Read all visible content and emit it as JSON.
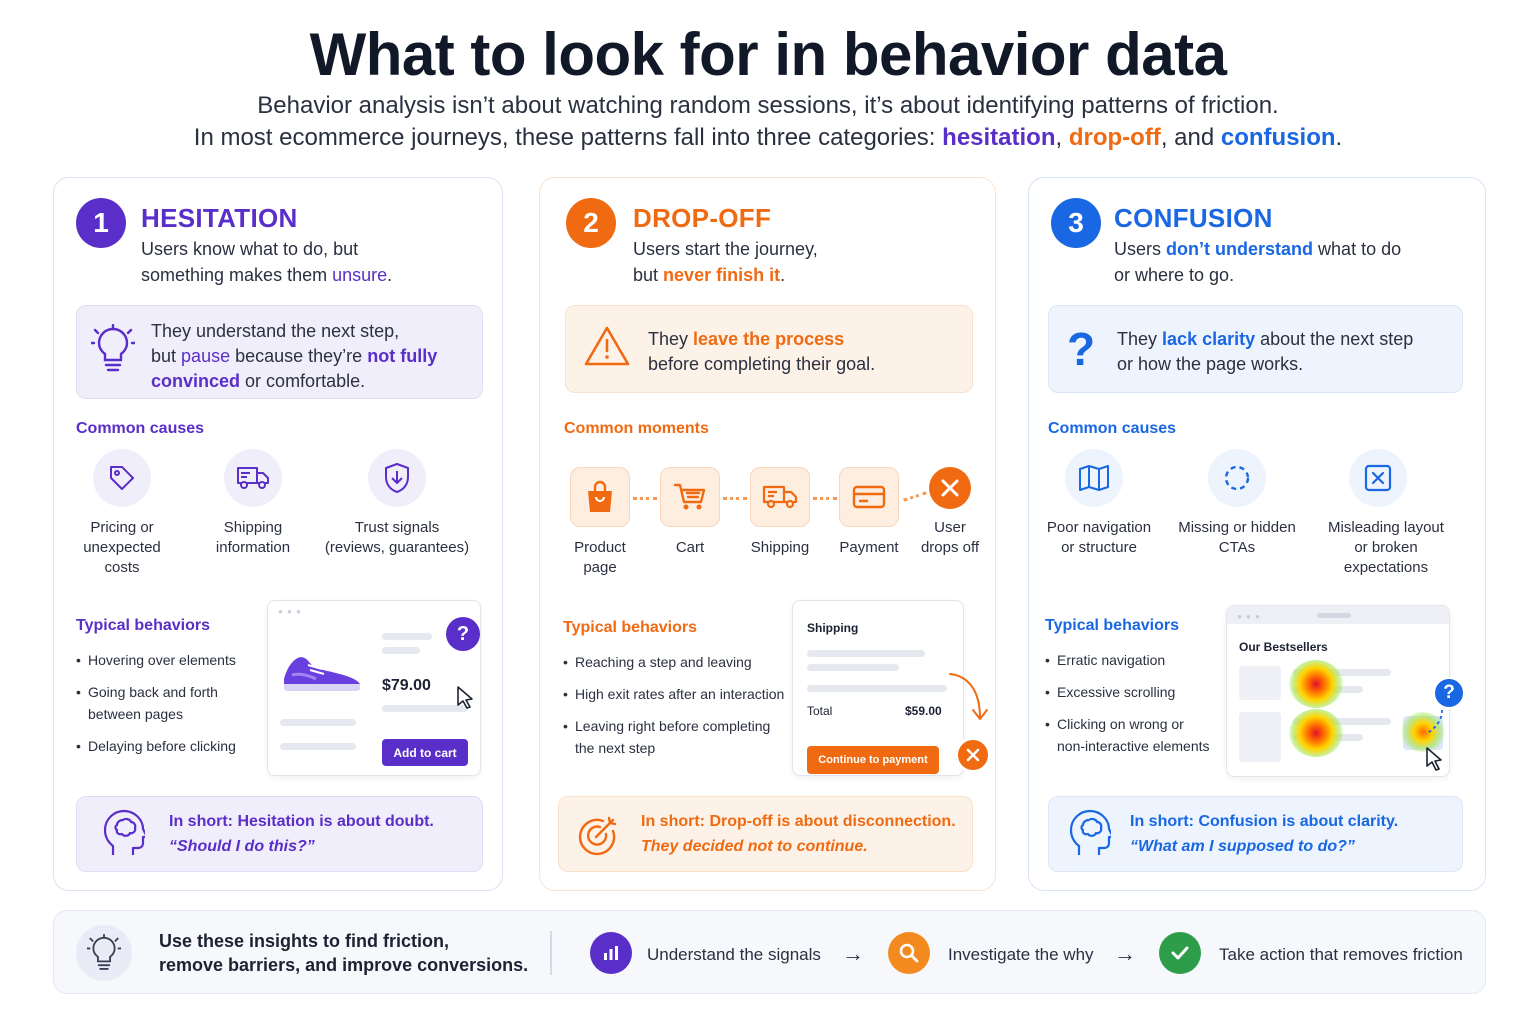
{
  "header": {
    "title": "What to look for in behavior data",
    "line1": "Behavior analysis isn’t about watching random sessions, it’s about identifying patterns of friction.",
    "line2_pre": "In most ecommerce journeys, these patterns fall into three categories:",
    "kw_hesitation": "hesitation",
    "comma1": ",",
    "kw_dropoff": "drop-off",
    "and": ", and",
    "kw_confusion": "confusion",
    "period": "."
  },
  "colors": {
    "purple": "#5a2ec8",
    "orange": "#f06a12",
    "blue": "#1967e3"
  },
  "hesitation": {
    "number": "1",
    "title": "HESITATION",
    "desc_1": "Users know what to do, but",
    "desc_2_pre": "something makes them",
    "desc_2_kw": "unsure",
    "desc_2_post": ".",
    "callout_1": "They understand the next step,",
    "callout_2_pre": "but",
    "callout_2_kw1": "pause",
    "callout_2_mid": "because they’re",
    "callout_2_kw2": "not fully",
    "callout_3_kw": "convinced",
    "callout_3_post": "or comfortable.",
    "section": "Common causes",
    "causes": [
      {
        "icon": "price-tag-icon",
        "l1": "Pricing or",
        "l2": "unexpected",
        "l3": "costs"
      },
      {
        "icon": "truck-icon",
        "l1": "Shipping",
        "l2": "information",
        "l3": ""
      },
      {
        "icon": "shield-icon",
        "l1": "Trust signals",
        "l2": "(reviews, guarantees)",
        "l3": ""
      }
    ],
    "behaviors_title": "Typical behaviors",
    "behaviors": [
      "Hovering over elements",
      "Going back and forth",
      "between pages",
      "Delaying before clicking"
    ],
    "mock": {
      "price": "$79.00",
      "button": "Add to cart",
      "badge": "?"
    },
    "short_title": "In short: Hesitation is about doubt.",
    "short_quote": "“Should I do this?”"
  },
  "dropoff": {
    "number": "2",
    "title": "DROP-OFF",
    "desc_1": "Users start the journey,",
    "desc_2_pre": "but",
    "desc_2_kw": "never finish it",
    "desc_2_post": ".",
    "callout_1_pre": "They",
    "callout_1_kw": "leave the process",
    "callout_2": "before completing their goal.",
    "section": "Common moments",
    "steps": [
      {
        "icon": "shopping-bag-icon",
        "l1": "Product",
        "l2": "page"
      },
      {
        "icon": "cart-icon",
        "l1": "Cart",
        "l2": ""
      },
      {
        "icon": "truck-icon",
        "l1": "Shipping",
        "l2": ""
      },
      {
        "icon": "credit-card-icon",
        "l1": "Payment",
        "l2": ""
      },
      {
        "icon": "close-icon",
        "l1": "User",
        "l2": "drops off"
      }
    ],
    "behaviors_title": "Typical behaviors",
    "behaviors": [
      "Reaching a step and leaving",
      "High exit rates after an interaction",
      "Leaving right before completing",
      "the next step"
    ],
    "mock": {
      "heading": "Shipping",
      "total_label": "Total",
      "total_value": "$59.00",
      "button": "Continue to payment"
    },
    "short_title": "In short: Drop-off is about disconnection.",
    "short_quote": "They decided not to continue."
  },
  "confusion": {
    "number": "3",
    "title": "CONFUSION",
    "desc_1_pre": "Users",
    "desc_1_kw": "don’t understand",
    "desc_1_post": "what to do",
    "desc_2": "or where to go.",
    "callout_1_pre": "They",
    "callout_1_kw": "lack clarity",
    "callout_1_post": "about the next step",
    "callout_2": "or how the page works.",
    "section": "Common causes",
    "causes": [
      {
        "icon": "map-icon",
        "l1": "Poor navigation",
        "l2": "or structure",
        "l3": ""
      },
      {
        "icon": "dashed-target-icon",
        "l1": "Missing or hidden",
        "l2": "CTAs",
        "l3": ""
      },
      {
        "icon": "broken-layout-icon",
        "l1": "Misleading layout",
        "l2": "or broken",
        "l3": "expectations"
      }
    ],
    "behaviors_title": "Typical behaviors",
    "behaviors": [
      "Erratic navigation",
      "Excessive scrolling",
      "Clicking on wrong or",
      "non-interactive elements"
    ],
    "mock": {
      "heading": "Our Bestsellers",
      "badge": "?"
    },
    "short_title": "In short: Confusion is about clarity.",
    "short_quote": "“What am I supposed to do?”"
  },
  "footer": {
    "line1": "Use these insights to find friction,",
    "line2": "remove barriers, and improve conversions.",
    "steps": [
      "Understand the signals",
      "Investigate the why",
      "Take action that removes friction"
    ],
    "arrow": "→"
  }
}
